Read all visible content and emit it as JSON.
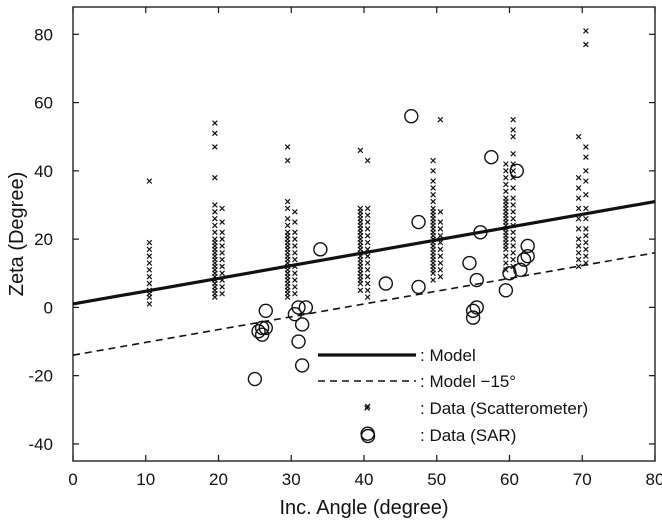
{
  "chart_data": {
    "type": "scatter",
    "title": "",
    "xlabel": "Inc. Angle (degree)",
    "ylabel": "Zeta (Degree)",
    "xlim": [
      0,
      80
    ],
    "ylim": [
      -45,
      88
    ],
    "xticks": [
      0,
      10,
      20,
      30,
      40,
      50,
      60,
      70,
      80
    ],
    "yticks": [
      -40,
      -20,
      0,
      20,
      40,
      60,
      80
    ],
    "grid": false,
    "legend_position": "bottom-right",
    "series": [
      {
        "name": ": Model",
        "kind": "line",
        "style": "solid",
        "x": [
          0,
          80
        ],
        "y": [
          1,
          31
        ]
      },
      {
        "name": ": Model −15°",
        "kind": "line",
        "style": "dashed",
        "x": [
          0,
          80
        ],
        "y": [
          -14,
          16
        ]
      },
      {
        "name": ": Data (Scatterometer)",
        "kind": "scatter",
        "marker": "x",
        "clusters": [
          {
            "x": 10.5,
            "y": [
              1,
              3,
              4,
              5,
              7,
              9,
              11,
              13,
              15,
              17,
              19,
              37
            ]
          },
          {
            "x": 19.5,
            "y": [
              3,
              4,
              5,
              6,
              7,
              8,
              9,
              10,
              11,
              12,
              13,
              14,
              15,
              16,
              17,
              18,
              19,
              20,
              22,
              24,
              26,
              28,
              30,
              38,
              47,
              51,
              54
            ]
          },
          {
            "x": 20.5,
            "y": [
              4,
              6,
              8,
              10,
              12,
              14,
              16,
              18,
              20,
              22,
              25,
              29
            ]
          },
          {
            "x": 29.5,
            "y": [
              3,
              4,
              5,
              6,
              7,
              8,
              9,
              10,
              11,
              12,
              13,
              14,
              15,
              16,
              17,
              18,
              19,
              20,
              21,
              22,
              24,
              26,
              29,
              31,
              43,
              47
            ]
          },
          {
            "x": 30.5,
            "y": [
              4,
              6,
              8,
              10,
              12,
              14,
              16,
              18,
              20,
              22,
              25,
              28
            ]
          },
          {
            "x": 39.5,
            "y": [
              5,
              7,
              8,
              9,
              10,
              11,
              12,
              13,
              14,
              15,
              16,
              17,
              18,
              19,
              20,
              21,
              22,
              23,
              24,
              25,
              26,
              27,
              28,
              29,
              46
            ]
          },
          {
            "x": 40.5,
            "y": [
              3,
              5,
              7,
              9,
              11,
              13,
              15,
              17,
              19,
              21,
              23,
              25,
              27,
              29,
              43,
              -29
            ]
          },
          {
            "x": 49.5,
            "y": [
              8,
              10,
              11,
              12,
              13,
              14,
              15,
              16,
              17,
              18,
              19,
              20,
              21,
              22,
              23,
              24,
              25,
              26,
              27,
              28,
              29,
              31,
              33,
              35,
              37,
              40,
              43
            ]
          },
          {
            "x": 50.5,
            "y": [
              9,
              11,
              13,
              15,
              17,
              19,
              21,
              23,
              25,
              28,
              55
            ]
          },
          {
            "x": 59.5,
            "y": [
              11,
              13,
              15,
              17,
              18,
              19,
              20,
              21,
              22,
              23,
              24,
              25,
              26,
              27,
              28,
              29,
              30,
              31,
              32,
              34,
              36,
              38,
              40,
              42
            ]
          },
          {
            "x": 60.5,
            "y": [
              12,
              14,
              16,
              18,
              20,
              22,
              24,
              26,
              28,
              30,
              32,
              35,
              38,
              40,
              42,
              45,
              50,
              52,
              55
            ]
          },
          {
            "x": 69.5,
            "y": [
              12,
              14,
              16,
              18,
              20,
              23,
              26,
              29,
              32,
              35,
              38,
              50
            ]
          },
          {
            "x": 70.5,
            "y": [
              13,
              15,
              17,
              19,
              21,
              23,
              26,
              29,
              33,
              37,
              40,
              44,
              47,
              77,
              81
            ]
          }
        ]
      },
      {
        "name": ": Data (SAR)",
        "kind": "scatter",
        "marker": "o",
        "x": [
          25,
          25.5,
          26,
          26,
          26.5,
          26.5,
          30.5,
          31,
          31,
          31.5,
          31.5,
          32,
          34,
          40.5,
          43,
          46.5,
          47.5,
          47.5,
          54.5,
          55,
          55,
          55.5,
          55.5,
          56,
          57.5,
          59.5,
          60,
          61,
          61.5,
          62,
          62.5,
          62.5
        ],
        "y": [
          -21,
          -7,
          -8,
          -6,
          -1,
          -6,
          -2,
          -10,
          0,
          -5,
          -17,
          0,
          17,
          -37,
          7,
          56,
          6,
          25,
          13,
          -3,
          -1,
          0,
          8,
          22,
          44,
          5,
          10,
          40,
          11,
          14,
          15,
          18
        ]
      }
    ]
  }
}
